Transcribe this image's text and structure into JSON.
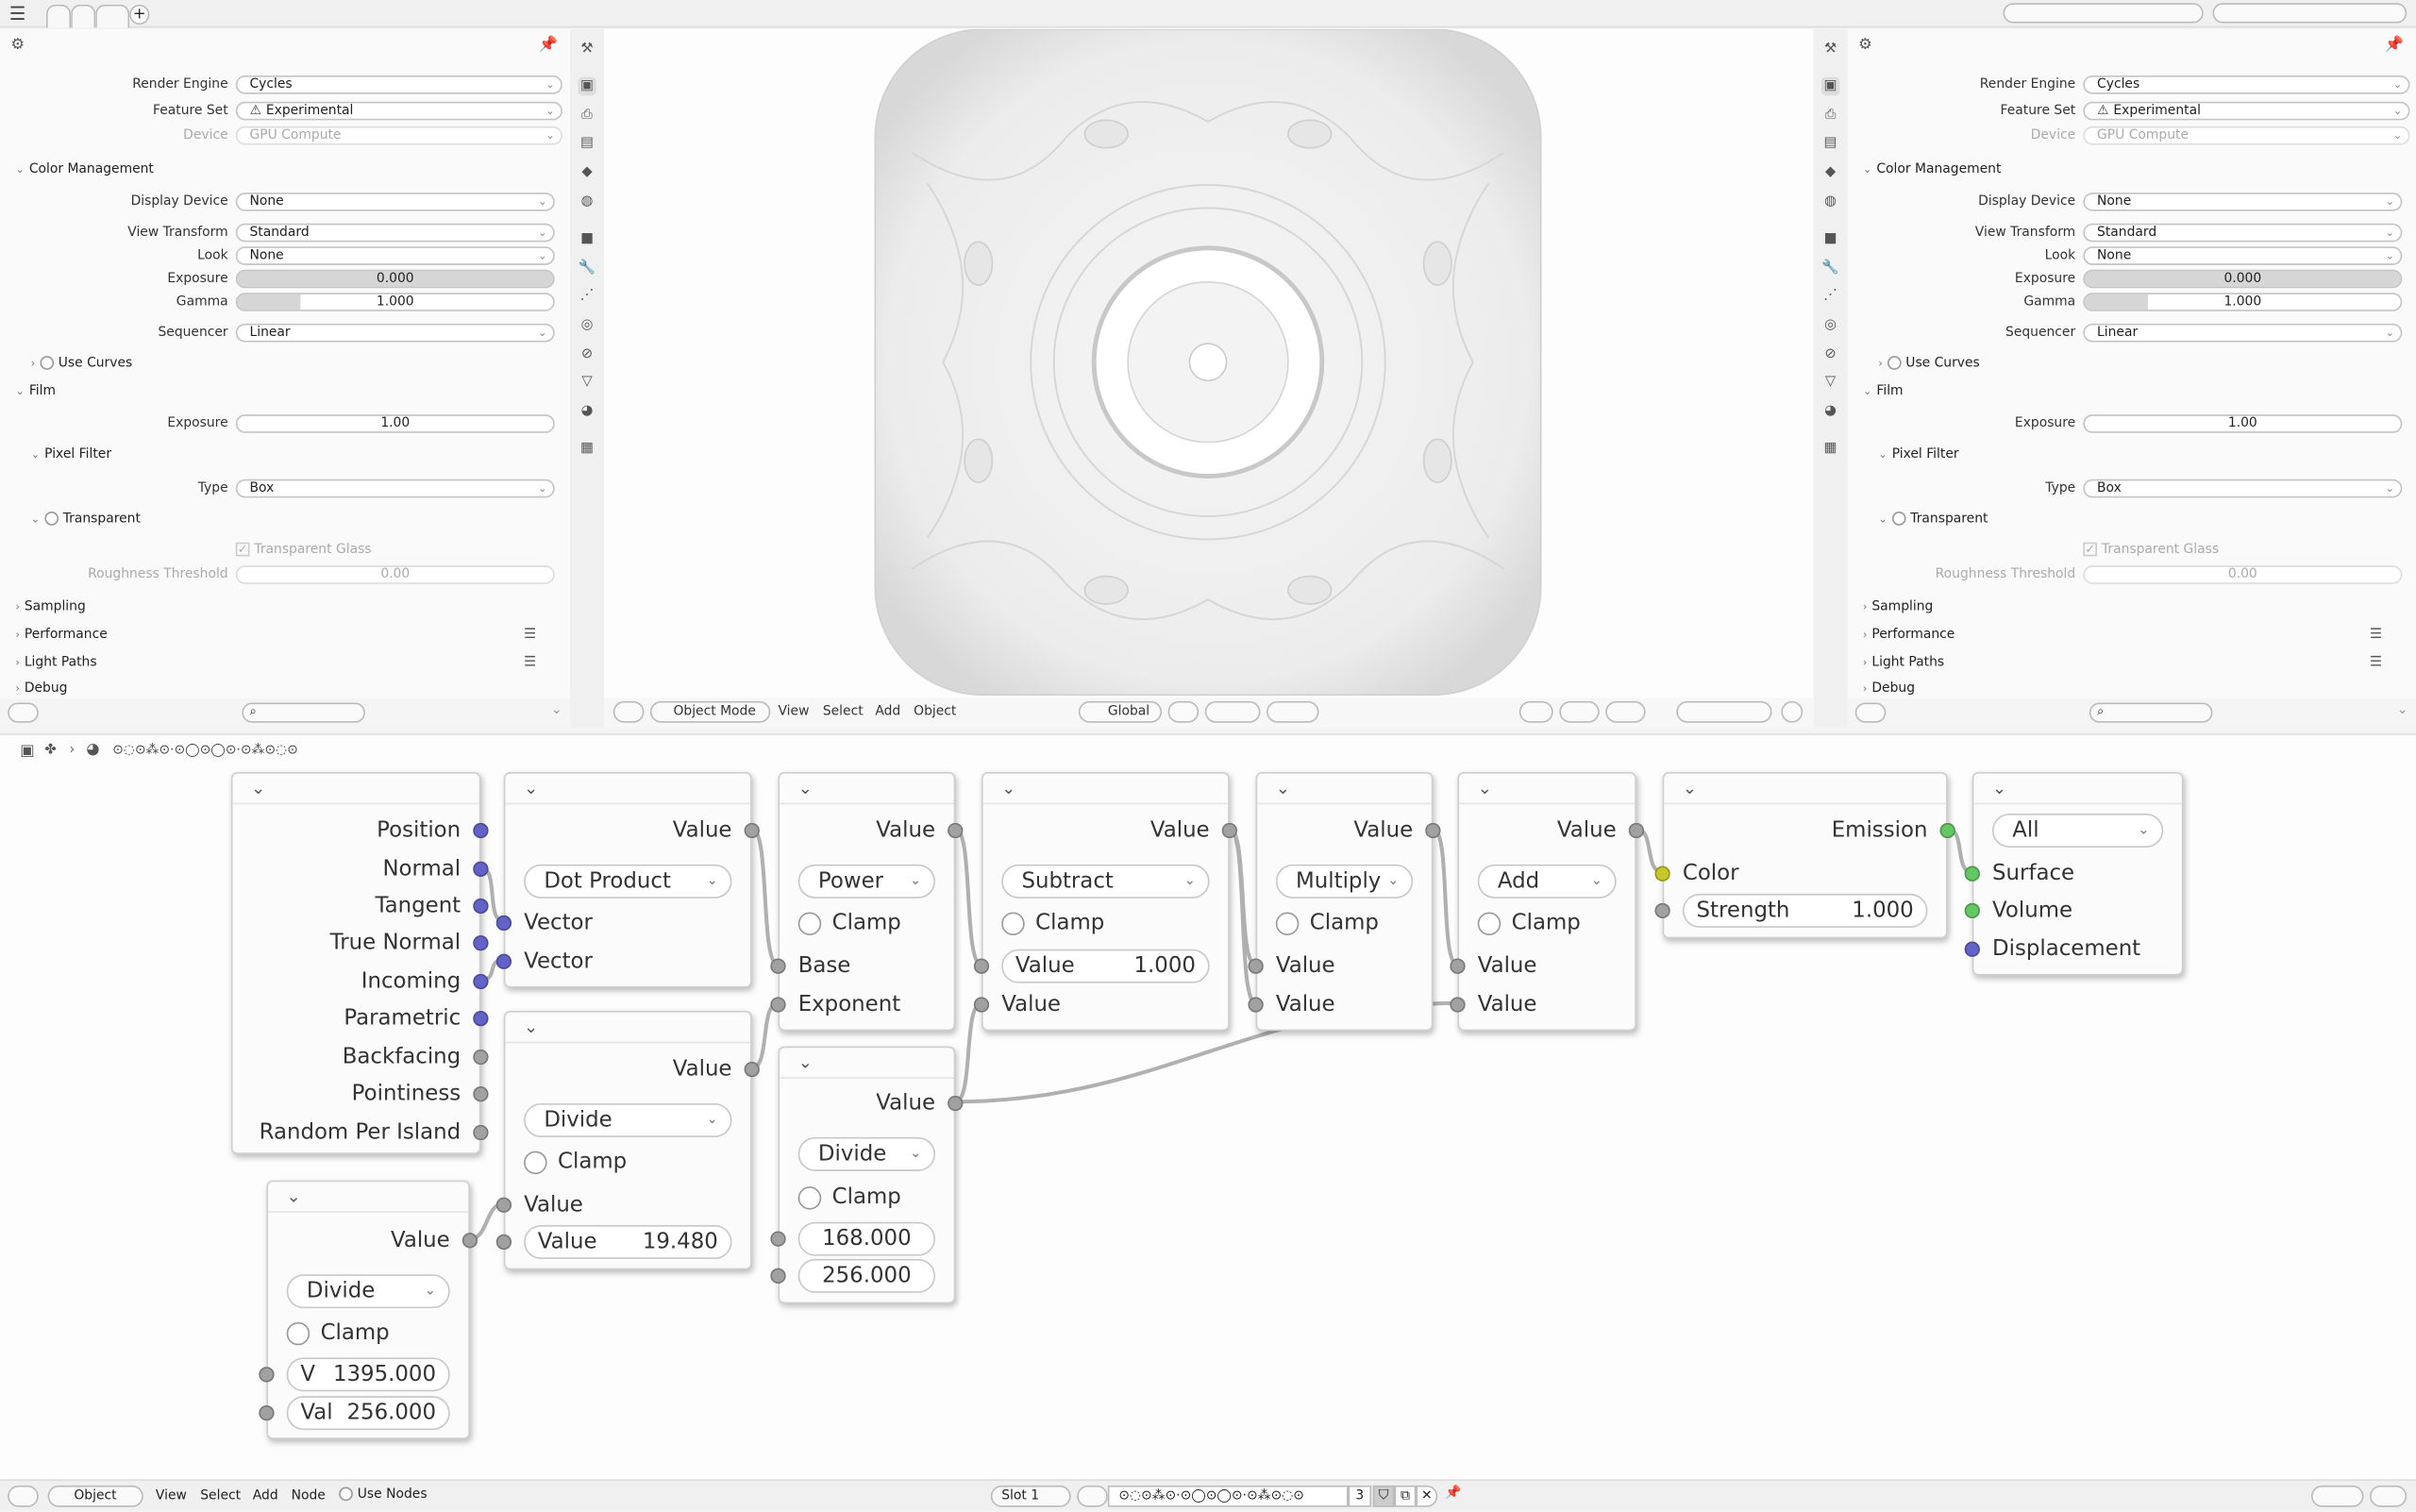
{
  "topbar": {
    "tabs": [
      "",
      "",
      ""
    ],
    "add_label": "+",
    "menu_icon": "hamburger-icon"
  },
  "properties": {
    "rows": [
      {
        "t": "select",
        "label": "Render Engine",
        "value": "Cycles"
      },
      {
        "t": "select",
        "label": "Feature Set",
        "value": "Experimental",
        "icon": "warning"
      },
      {
        "t": "select",
        "label": "Device",
        "value": "GPU Compute",
        "disabled": true
      },
      {
        "t": "panel",
        "label": "Color Management",
        "open": true
      },
      {
        "t": "select",
        "label": "Display Device",
        "value": "None"
      },
      {
        "t": "select",
        "label": "View Transform",
        "value": "Standard"
      },
      {
        "t": "select",
        "label": "Look",
        "value": "None"
      },
      {
        "t": "slider",
        "label": "Exposure",
        "value": "0.000",
        "fill": 1.0
      },
      {
        "t": "slider",
        "label": "Gamma",
        "value": "1.000",
        "fill": 0.2
      },
      {
        "t": "select",
        "label": "Sequencer",
        "value": "Linear"
      },
      {
        "t": "sub",
        "label": "Use Curves",
        "open": false,
        "checkbox": true
      },
      {
        "t": "panel",
        "label": "Film",
        "open": true
      },
      {
        "t": "field",
        "label": "Exposure",
        "value": "1.00"
      },
      {
        "t": "sub",
        "label": "Pixel Filter",
        "open": true
      },
      {
        "t": "select",
        "label": "Type",
        "value": "Box"
      },
      {
        "t": "sub",
        "label": "Transparent",
        "open": true,
        "checkbox": true
      },
      {
        "t": "check",
        "label": "Transparent Glass",
        "checked": true,
        "disabled": true
      },
      {
        "t": "field",
        "label": "Roughness Threshold",
        "value": "0.00",
        "disabled": true
      },
      {
        "t": "panel",
        "label": "Sampling",
        "open": false
      },
      {
        "t": "panel",
        "label": "Performance",
        "open": false,
        "list": true
      },
      {
        "t": "panel",
        "label": "Light Paths",
        "open": false,
        "list": true
      },
      {
        "t": "panel",
        "label": "Debug",
        "open": false
      }
    ]
  },
  "viewport": {
    "mode": "Object Mode",
    "menus": [
      "View",
      "Select",
      "Add",
      "Object"
    ],
    "orientation": "Global"
  },
  "node_editor": {
    "material_name": "⊙◌⊙⁂⊙·⊙◯⊙◯⊙·⊙⁂⊙◌⊙"
  },
  "socket_colors": {
    "vector": "#6363c7",
    "float": "#a1a1a1",
    "color": "#c7c729",
    "shader": "#63c763"
  },
  "nodes": [
    {
      "rows": [
        {
          "t": "out",
          "label": "Position",
          "s": "vector"
        },
        {
          "t": "out",
          "label": "Normal",
          "s": "vector"
        },
        {
          "t": "out",
          "label": "Tangent",
          "s": "vector"
        },
        {
          "t": "out",
          "label": "True Normal",
          "s": "vector"
        },
        {
          "t": "out",
          "label": "Incoming",
          "s": "vector"
        },
        {
          "t": "out",
          "label": "Parametric",
          "s": "vector"
        },
        {
          "t": "out",
          "label": "Backfacing",
          "s": "float"
        },
        {
          "t": "out",
          "label": "Pointiness",
          "s": "float"
        },
        {
          "t": "out",
          "label": "Random Per Island",
          "s": "float"
        }
      ]
    },
    {
      "rows": [
        {
          "t": "out",
          "label": "Value",
          "s": "float"
        },
        {
          "t": "select",
          "value": "Dot Product"
        },
        {
          "t": "in",
          "label": "Vector",
          "s": "vector"
        },
        {
          "t": "in",
          "label": "Vector",
          "s": "vector"
        }
      ]
    },
    {
      "rows": [
        {
          "t": "out",
          "label": "Value",
          "s": "float"
        },
        {
          "t": "select",
          "value": "Divide"
        },
        {
          "t": "check",
          "label": "Clamp"
        },
        {
          "t": "in",
          "label": "Value",
          "s": "float"
        },
        {
          "t": "field",
          "label": "Value",
          "value": "19.480",
          "s": "float"
        }
      ]
    },
    {
      "rows": [
        {
          "t": "out",
          "label": "Value",
          "s": "float"
        },
        {
          "t": "select",
          "value": "Divide"
        },
        {
          "t": "check",
          "label": "Clamp"
        },
        {
          "t": "field",
          "label": "V",
          "value": "1395.000",
          "s": "float"
        },
        {
          "t": "field",
          "label": "Val",
          "value": "256.000",
          "s": "float"
        }
      ]
    },
    {
      "rows": [
        {
          "t": "out",
          "label": "Value",
          "s": "float"
        },
        {
          "t": "select",
          "value": "Power"
        },
        {
          "t": "check",
          "label": "Clamp"
        },
        {
          "t": "in",
          "label": "Base",
          "s": "float"
        },
        {
          "t": "in",
          "label": "Exponent",
          "s": "float"
        }
      ]
    },
    {
      "rows": [
        {
          "t": "out",
          "label": "Value",
          "s": "float"
        },
        {
          "t": "select",
          "value": "Divide"
        },
        {
          "t": "check",
          "label": "Clamp"
        },
        {
          "t": "num",
          "value": "168.000",
          "s": "float"
        },
        {
          "t": "num",
          "value": "256.000",
          "s": "float"
        }
      ]
    },
    {
      "rows": [
        {
          "t": "out",
          "label": "Value",
          "s": "float"
        },
        {
          "t": "select",
          "value": "Subtract"
        },
        {
          "t": "check",
          "label": "Clamp"
        },
        {
          "t": "field",
          "label": "Value",
          "value": "1.000",
          "s": "float"
        },
        {
          "t": "in",
          "label": "Value",
          "s": "float"
        }
      ]
    },
    {
      "rows": [
        {
          "t": "out",
          "label": "Value",
          "s": "float"
        },
        {
          "t": "select",
          "value": "Multiply"
        },
        {
          "t": "check",
          "label": "Clamp"
        },
        {
          "t": "in",
          "label": "Value",
          "s": "float"
        },
        {
          "t": "in",
          "label": "Value",
          "s": "float"
        }
      ]
    },
    {
      "rows": [
        {
          "t": "out",
          "label": "Value",
          "s": "float"
        },
        {
          "t": "select",
          "value": "Add"
        },
        {
          "t": "check",
          "label": "Clamp"
        },
        {
          "t": "in",
          "label": "Value",
          "s": "float"
        },
        {
          "t": "in",
          "label": "Value",
          "s": "float"
        }
      ]
    },
    {
      "rows": [
        {
          "t": "out",
          "label": "Emission",
          "s": "shader"
        },
        {
          "t": "in",
          "label": "Color",
          "s": "color"
        },
        {
          "t": "field",
          "label": "Strength",
          "value": "1.000",
          "s": "float"
        }
      ]
    },
    {
      "rows": [
        {
          "t": "select",
          "value": "All"
        },
        {
          "t": "in",
          "label": "Surface",
          "s": "shader"
        },
        {
          "t": "in",
          "label": "Volume",
          "s": "shader"
        },
        {
          "t": "in",
          "label": "Displacement",
          "s": "vector"
        }
      ]
    }
  ],
  "status": {
    "editor": "Object",
    "menus": [
      "View",
      "Select",
      "Add",
      "Node"
    ],
    "use_nodes": "Use Nodes",
    "slot": "Slot 1",
    "material_name": "⊙◌⊙⁂⊙·⊙◯⊙◯⊙·⊙⁂⊙◌⊙",
    "users": "3"
  }
}
